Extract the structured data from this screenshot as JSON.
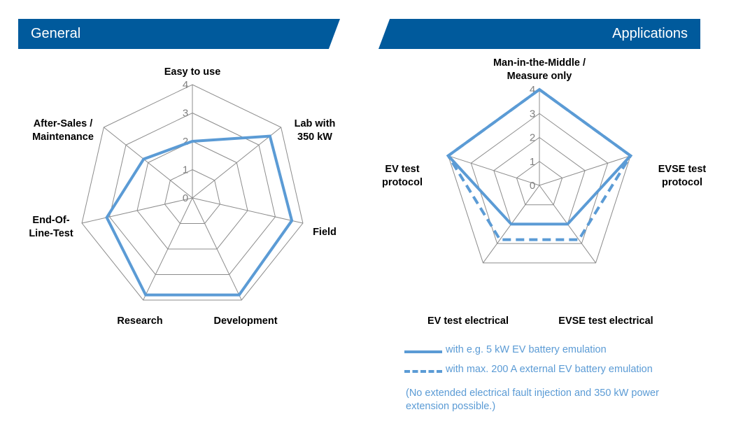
{
  "banners": {
    "left": "General",
    "right": "Applications"
  },
  "chart_data": [
    {
      "type": "radar",
      "title": "General",
      "axes": [
        [
          "Easy to use"
        ],
        [
          "Lab with",
          "350 kW"
        ],
        [
          "Field"
        ],
        [
          "Development"
        ],
        [
          "Research"
        ],
        [
          "End-Of-",
          "Line-Test"
        ],
        [
          "After-Sales /",
          "Maintenance"
        ]
      ],
      "ticks": [
        "0",
        "1",
        "2",
        "3",
        "4"
      ],
      "range": [
        0,
        4
      ],
      "series": [
        {
          "values": [
            2,
            3.5,
            3.6,
            3.8,
            3.8,
            3.1,
            2.2
          ],
          "color": "#5b9bd5",
          "style": "solid"
        }
      ]
    },
    {
      "type": "radar",
      "title": "Applications",
      "axes": [
        [
          "Man-in-the-Middle /",
          "Measure only"
        ],
        [
          "EVSE test",
          "protocol"
        ],
        [
          "EVSE test electrical"
        ],
        [
          "EV test electrical"
        ],
        [
          "EV test",
          "protocol"
        ]
      ],
      "ticks": [
        "0",
        "1",
        "2",
        "3",
        "4"
      ],
      "range": [
        0,
        4
      ],
      "series": [
        {
          "name": "with e.g. 5 kW EV battery emulation",
          "values": [
            4,
            4,
            2,
            2,
            4
          ],
          "color": "#5b9bd5",
          "style": "solid"
        },
        {
          "name": "with max. 200 A external EV battery emulation",
          "values": [
            4,
            4,
            2.8,
            2.8,
            4
          ],
          "color": "#5b9bd5",
          "style": "dashed"
        }
      ]
    }
  ],
  "note": "(No extended electrical fault injection and 350 kW power extension possible.)"
}
